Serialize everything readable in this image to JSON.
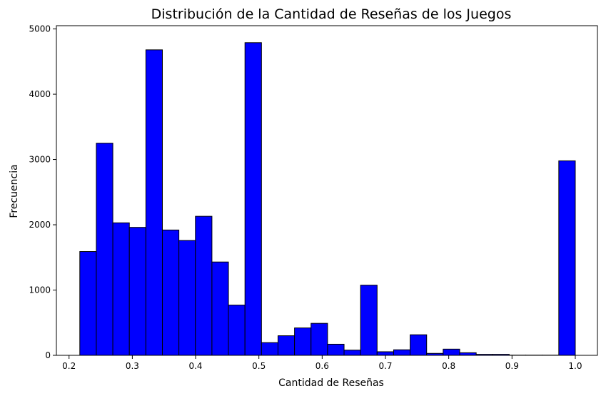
{
  "chart_data": {
    "type": "bar",
    "title": "Distribución de la Cantidad de Reseñas de los Juegos",
    "xlabel": "Cantidad de Reseñas",
    "ylabel": "Frecuencia",
    "xlim": [
      0.18,
      1.035
    ],
    "ylim": [
      0,
      5050
    ],
    "bin_start": 0.217,
    "bin_width": 0.0261,
    "values": [
      1590,
      3250,
      2030,
      1960,
      4680,
      1920,
      1760,
      2130,
      1430,
      770,
      4790,
      195,
      300,
      420,
      490,
      170,
      80,
      1075,
      55,
      85,
      315,
      30,
      95,
      40,
      15,
      15,
      3,
      3,
      3,
      2980
    ],
    "x_ticks": [
      0.2,
      0.3,
      0.4,
      0.5,
      0.6,
      0.7,
      0.8,
      0.9,
      1.0
    ],
    "x_tick_labels": [
      "0.2",
      "0.3",
      "0.4",
      "0.5",
      "0.6",
      "0.7",
      "0.8",
      "0.9",
      "1.0"
    ],
    "y_ticks": [
      0,
      1000,
      2000,
      3000,
      4000,
      5000
    ],
    "y_tick_labels": [
      "0",
      "1000",
      "2000",
      "3000",
      "4000",
      "5000"
    ],
    "bar_color": "#0000ff",
    "edge_color": "#000000",
    "grid": false,
    "legend": "none"
  }
}
